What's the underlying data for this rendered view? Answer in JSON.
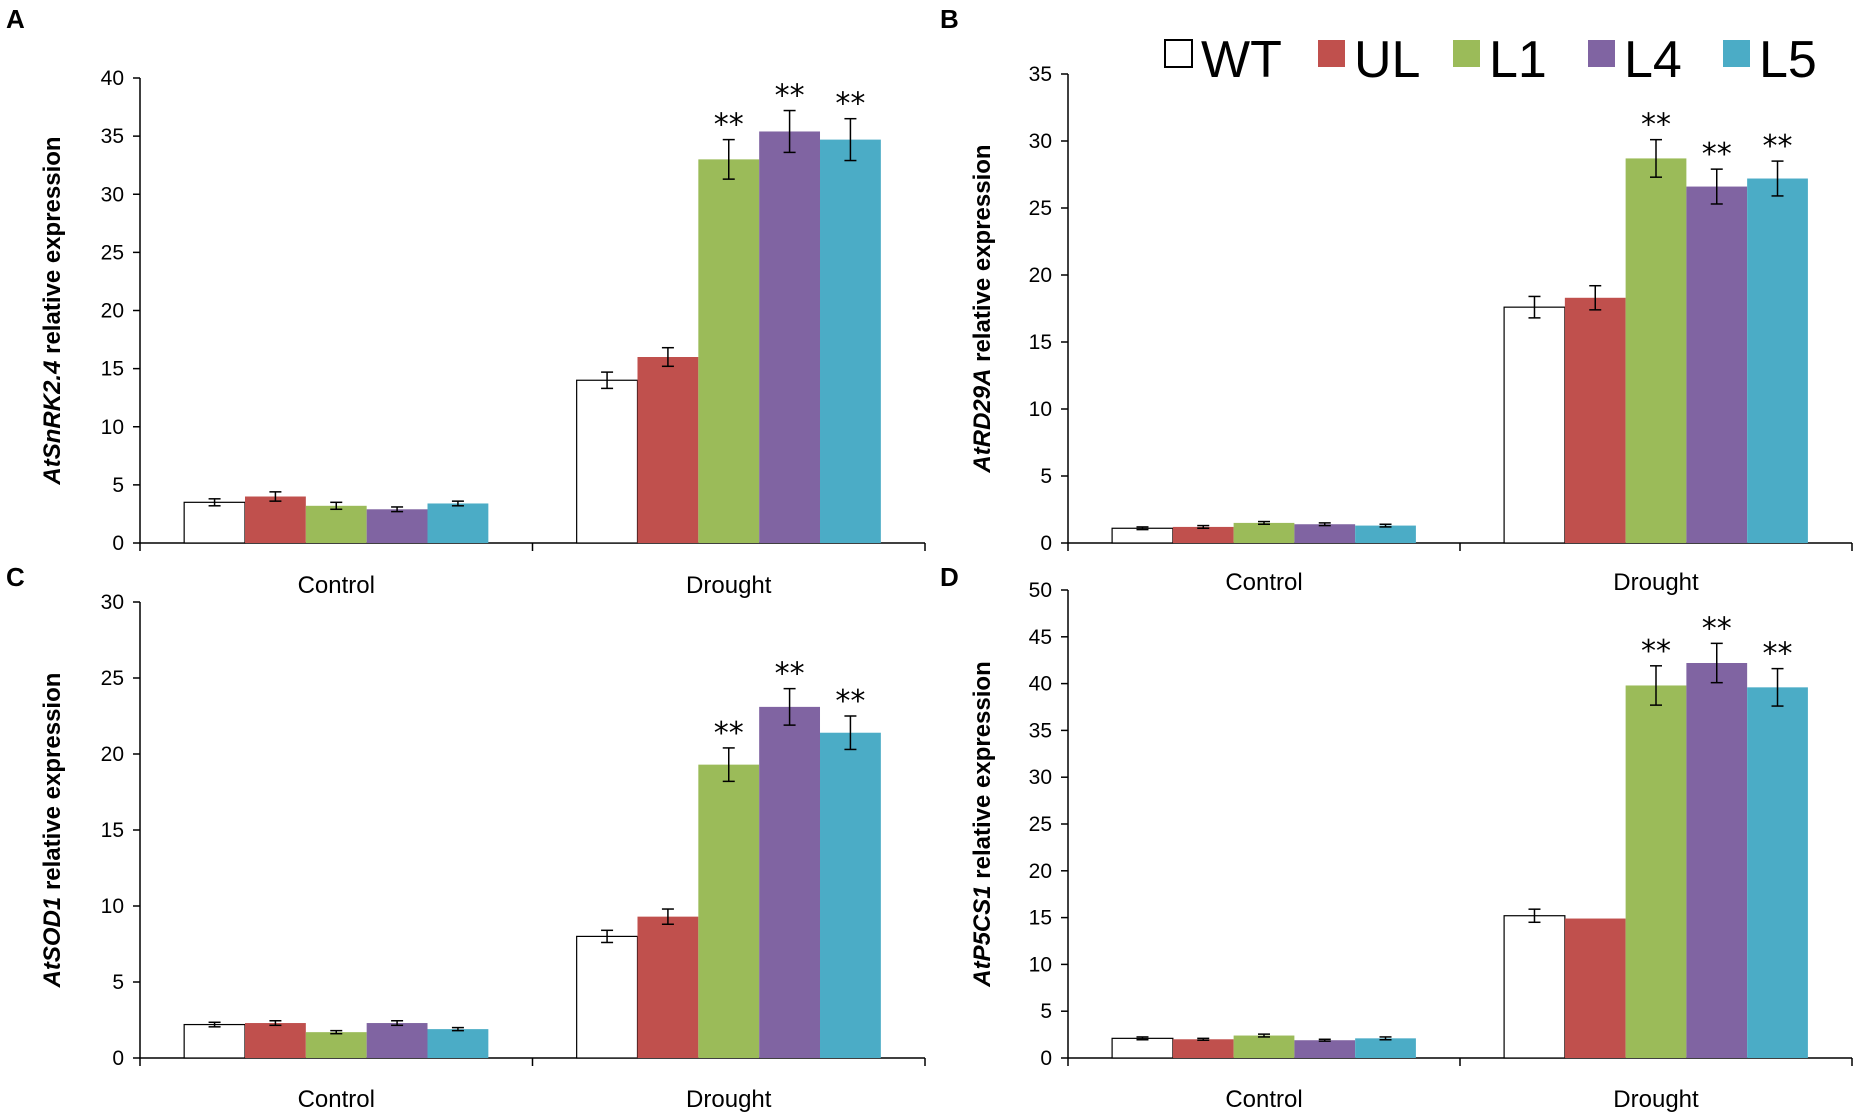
{
  "chart_data": [
    {
      "type": "bar",
      "panel": "A",
      "title": "",
      "ylabel_italic": "AtSnRK2.4",
      "ylabel_rest": "relative expression",
      "xlabel": "",
      "categories": [
        "Control",
        "Drought"
      ],
      "ylim": [
        0,
        40
      ],
      "yticks": [
        0,
        5,
        10,
        15,
        20,
        25,
        30,
        35,
        40
      ],
      "series": [
        {
          "name": "WT",
          "values": [
            3.5,
            14.0
          ],
          "errors": [
            0.3,
            0.7
          ],
          "sig": [
            "",
            ""
          ]
        },
        {
          "name": "UL",
          "values": [
            4.0,
            16.0
          ],
          "errors": [
            0.4,
            0.8
          ],
          "sig": [
            "",
            ""
          ]
        },
        {
          "name": "L1",
          "values": [
            3.2,
            33.0
          ],
          "errors": [
            0.3,
            1.7
          ],
          "sig": [
            "",
            "**"
          ]
        },
        {
          "name": "L4",
          "values": [
            2.9,
            35.4
          ],
          "errors": [
            0.2,
            1.8
          ],
          "sig": [
            "",
            "**"
          ]
        },
        {
          "name": "L5",
          "values": [
            3.4,
            34.7
          ],
          "errors": [
            0.2,
            1.8
          ],
          "sig": [
            "",
            "**"
          ]
        }
      ]
    },
    {
      "type": "bar",
      "panel": "B",
      "title": "",
      "ylabel_italic": "AtRD29A",
      "ylabel_rest": "relative expression",
      "xlabel": "",
      "categories": [
        "Control",
        "Drought"
      ],
      "ylim": [
        0,
        35
      ],
      "yticks": [
        0,
        5,
        10,
        15,
        20,
        25,
        30,
        35
      ],
      "series": [
        {
          "name": "WT",
          "values": [
            1.1,
            17.6
          ],
          "errors": [
            0.1,
            0.8
          ],
          "sig": [
            "",
            ""
          ]
        },
        {
          "name": "UL",
          "values": [
            1.2,
            18.3
          ],
          "errors": [
            0.1,
            0.9
          ],
          "sig": [
            "",
            ""
          ]
        },
        {
          "name": "L1",
          "values": [
            1.5,
            28.7
          ],
          "errors": [
            0.1,
            1.4
          ],
          "sig": [
            "",
            "**"
          ]
        },
        {
          "name": "L4",
          "values": [
            1.4,
            26.6
          ],
          "errors": [
            0.1,
            1.3
          ],
          "sig": [
            "",
            "**"
          ]
        },
        {
          "name": "L5",
          "values": [
            1.3,
            27.2
          ],
          "errors": [
            0.1,
            1.3
          ],
          "sig": [
            "",
            "**"
          ]
        }
      ]
    },
    {
      "type": "bar",
      "panel": "C",
      "title": "",
      "ylabel_italic": "AtSOD1",
      "ylabel_rest": "relative expression",
      "xlabel": "",
      "categories": [
        "Control",
        "Drought"
      ],
      "ylim": [
        0,
        30
      ],
      "yticks": [
        0,
        5,
        10,
        15,
        20,
        25,
        30
      ],
      "series": [
        {
          "name": "WT",
          "values": [
            2.2,
            8.0
          ],
          "errors": [
            0.15,
            0.4
          ],
          "sig": [
            "",
            ""
          ]
        },
        {
          "name": "UL",
          "values": [
            2.3,
            9.3
          ],
          "errors": [
            0.15,
            0.5
          ],
          "sig": [
            "",
            ""
          ]
        },
        {
          "name": "L1",
          "values": [
            1.7,
            19.3
          ],
          "errors": [
            0.1,
            1.1
          ],
          "sig": [
            "",
            "**"
          ]
        },
        {
          "name": "L4",
          "values": [
            2.3,
            23.1
          ],
          "errors": [
            0.15,
            1.2
          ],
          "sig": [
            "",
            "**"
          ]
        },
        {
          "name": "L5",
          "values": [
            1.9,
            21.4
          ],
          "errors": [
            0.1,
            1.1
          ],
          "sig": [
            "",
            "**"
          ]
        }
      ]
    },
    {
      "type": "bar",
      "panel": "D",
      "title": "",
      "ylabel_italic": "AtP5CS1",
      "ylabel_rest": "relative expression",
      "xlabel": "",
      "categories": [
        "Control",
        "Drought"
      ],
      "ylim": [
        0,
        50
      ],
      "yticks": [
        0,
        5,
        10,
        15,
        20,
        25,
        30,
        35,
        40,
        45,
        50
      ],
      "series": [
        {
          "name": "WT",
          "values": [
            2.1,
            15.2
          ],
          "errors": [
            0.15,
            0.7
          ],
          "sig": [
            "",
            ""
          ]
        },
        {
          "name": "UL",
          "values": [
            2.0,
            14.9
          ],
          "errors": [
            0.1,
            0.0
          ],
          "sig": [
            "",
            ""
          ]
        },
        {
          "name": "L1",
          "values": [
            2.4,
            39.8
          ],
          "errors": [
            0.15,
            2.1
          ],
          "sig": [
            "",
            "**"
          ]
        },
        {
          "name": "L4",
          "values": [
            1.9,
            42.2
          ],
          "errors": [
            0.1,
            2.1
          ],
          "sig": [
            "",
            "**"
          ]
        },
        {
          "name": "L5",
          "values": [
            2.1,
            39.6
          ],
          "errors": [
            0.15,
            2.0
          ],
          "sig": [
            "",
            "**"
          ]
        }
      ]
    }
  ],
  "legend": {
    "items": [
      "WT",
      "UL",
      "L1",
      "L4",
      "L5"
    ],
    "placement": "top-right"
  },
  "colors": {
    "WT": "#ffffff",
    "UL": "#c0504d",
    "L1": "#9bbb59",
    "L4": "#8064a2",
    "L5": "#4bacc6"
  }
}
